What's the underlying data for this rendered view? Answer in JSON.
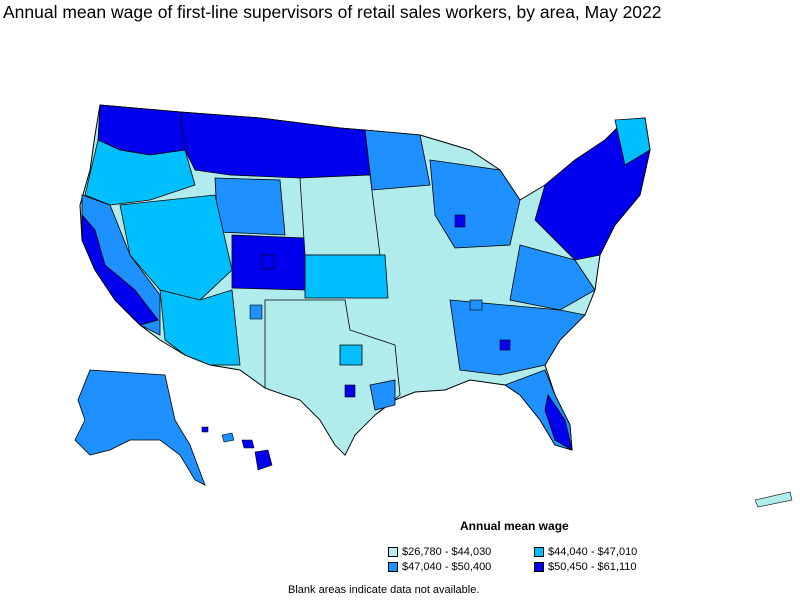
{
  "title": "Annual mean wage of first-line supervisors of retail sales workers, by area, May 2022",
  "colors": {
    "c1": "#b0ecec",
    "c2": "#00bfff",
    "c3": "#1e90ff",
    "c4": "#0000ee",
    "border": "#000000"
  },
  "legend": {
    "title": "Annual mean wage",
    "items": [
      {
        "label": "$26,780 - $44,030",
        "color_key": "c1"
      },
      {
        "label": "$44,040 - $47,010",
        "color_key": "c2"
      },
      {
        "label": "$47,040 - $50,400",
        "color_key": "c3"
      },
      {
        "label": "$50,450 - $61,110",
        "color_key": "c4"
      }
    ]
  },
  "note": "Blank areas indicate data not available."
}
